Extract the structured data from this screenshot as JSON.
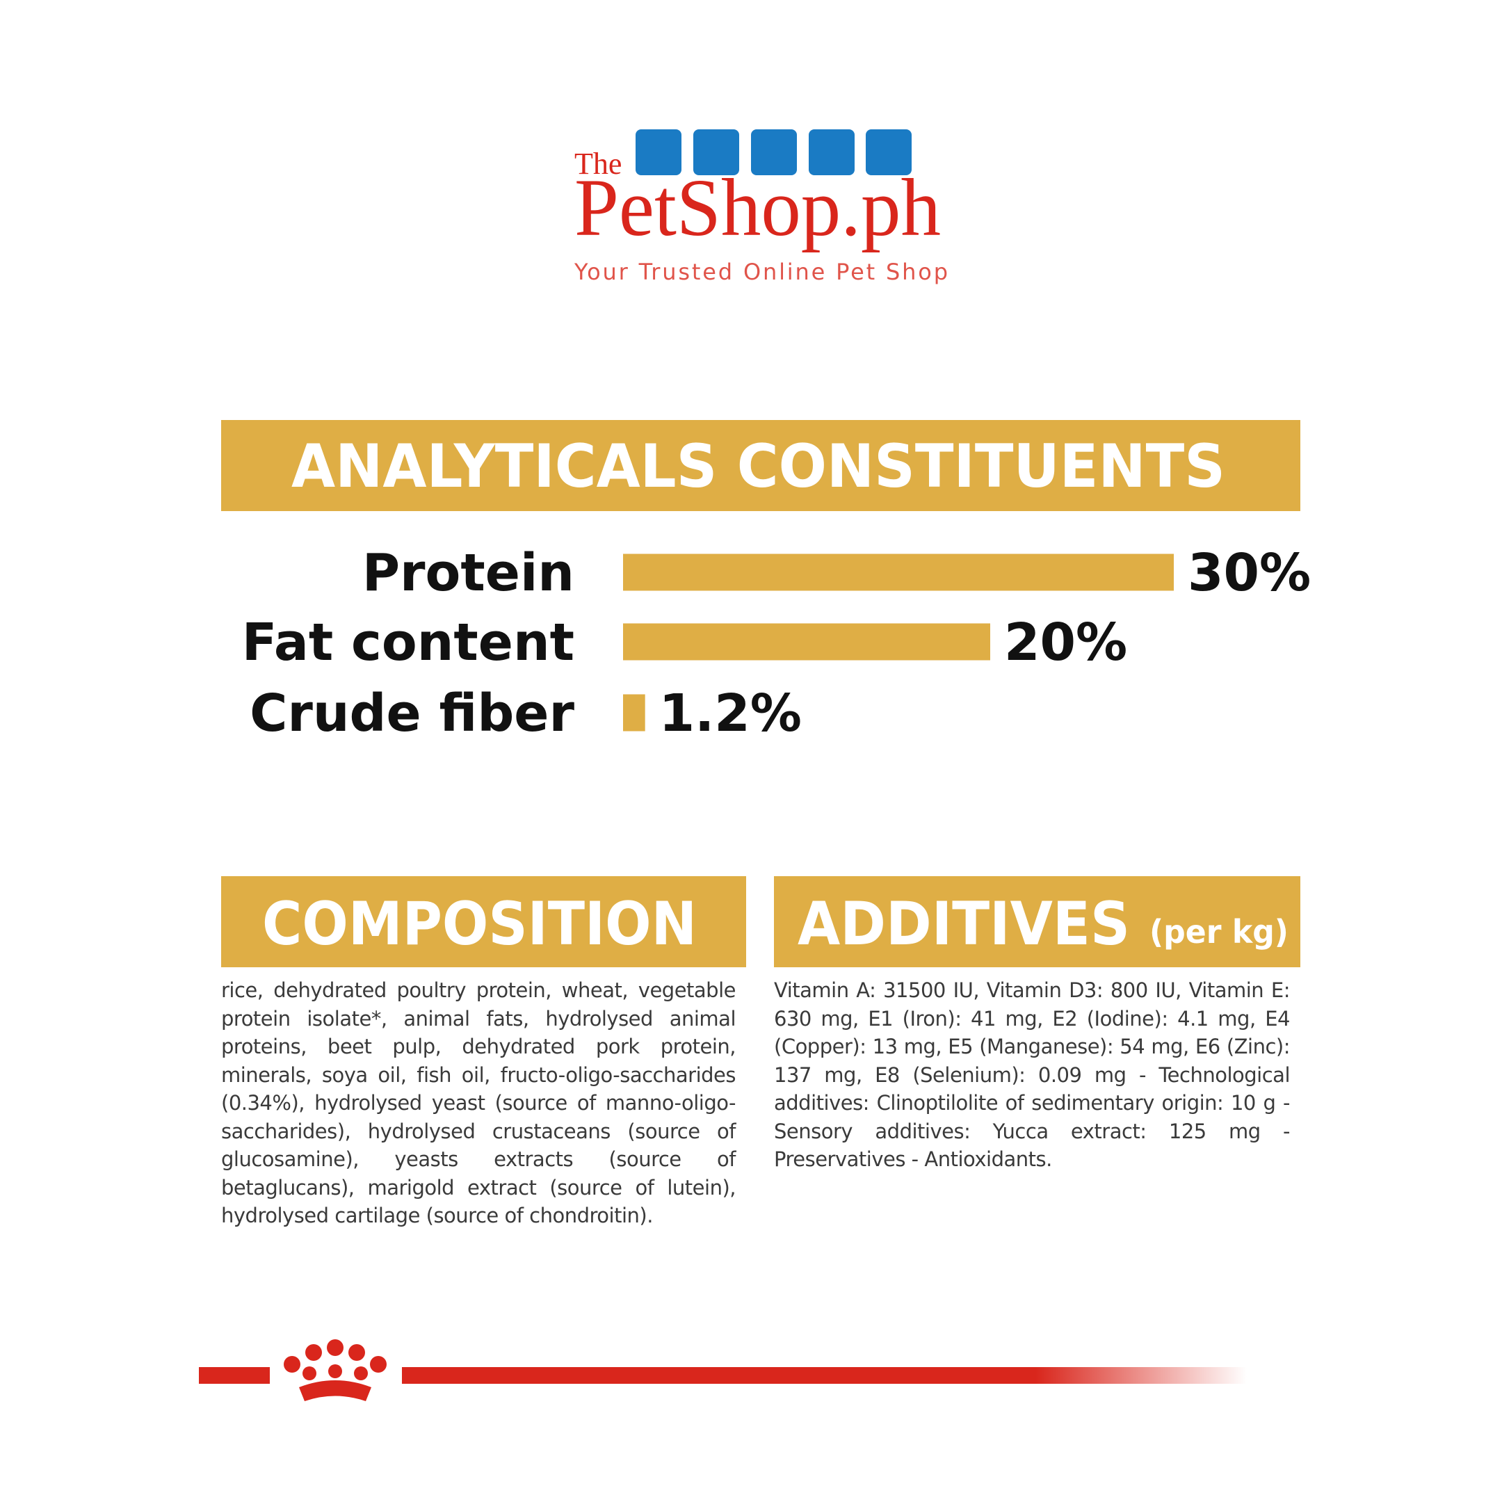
{
  "logo": {
    "prefix": "The",
    "name": "PetShop.ph",
    "tagline": "Your Trusted Online Pet Shop"
  },
  "chart_data": {
    "type": "bar",
    "title": "ANALYTICALS CONSTITUENTS",
    "categories": [
      "Protein",
      "Fat content",
      "Crude fiber"
    ],
    "values": [
      30,
      20,
      1.2
    ],
    "value_labels": [
      "30%",
      "20%",
      "1.2%"
    ],
    "color": "#dfae45"
  },
  "composition": {
    "title": "COMPOSITION",
    "text": "rice, dehydrated poultry protein, wheat, vegetable protein isolate*, animal fats, hydrolysed animal proteins, beet pulp, dehydrated pork protein, minerals, soya oil, fish oil, fructo-oligo-saccharides (0.34%), hydrolysed yeast (source of manno-oligo-saccharides), hydrolysed crustaceans (source of glucosamine), yeasts extracts (source of betaglucans), marigold extract (source of lutein), hydrolysed cartilage (source of chondroitin)."
  },
  "additives": {
    "title": "ADDITIVES",
    "unit": "(per kg)",
    "text": "Vitamin A: 31500 IU, Vitamin D3: 800 IU, Vitamin E: 630 mg, E1 (Iron): 41 mg, E2 (Iodine): 4.1 mg, E4 (Copper): 13 mg, E5 (Manganese): 54 mg, E6 (Zinc): 137 mg, E8 (Selenium): 0.09 mg - Technological additives: Clinoptilolite of sedimentary origin: 10 g - Sensory additives: Yucca extract: 125 mg - Preservatives - Antioxidants."
  }
}
